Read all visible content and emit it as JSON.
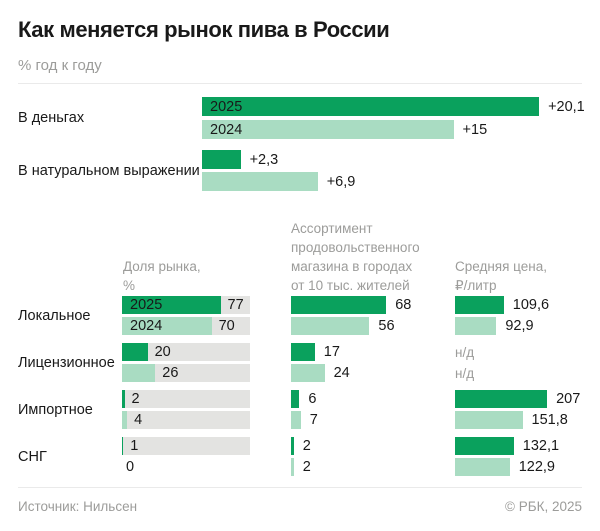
{
  "title": "Как меняется рынок пива в России",
  "subtitle": "% год к году",
  "colors": {
    "dark_green": "#0aa15d",
    "light_green": "#a9dcc2",
    "track_gray": "#e3e3e1",
    "muted_text": "#9c9c9a",
    "ink": "#191919"
  },
  "top_chart": {
    "rows": [
      {
        "label": "В деньгах",
        "bars": [
          {
            "year": "2025",
            "value": 20.1,
            "display": "+20,1"
          },
          {
            "year": "2024",
            "value": 15,
            "display": "+15"
          }
        ]
      },
      {
        "label": "В натуральном выражении",
        "bars": [
          {
            "value": 2.3,
            "display": "+2,3"
          },
          {
            "value": 6.9,
            "display": "+6,9"
          }
        ]
      }
    ]
  },
  "bottom_chart": {
    "col_headers": {
      "share": "Доля рынка,\n%",
      "assortment": "Ассортимент\nпродовольственного\nмагазина в городах\nот 10 тыс. жителей",
      "price": "Средняя цена,\n₽/литр"
    },
    "rows": [
      {
        "label": "Локальное",
        "share": [
          {
            "year": "2025",
            "value": 77,
            "display": "77"
          },
          {
            "year": "2024",
            "value": 70,
            "display": "70"
          }
        ],
        "assortment": [
          {
            "value": 68,
            "display": "68"
          },
          {
            "value": 56,
            "display": "56"
          }
        ],
        "price": [
          {
            "value": 109.6,
            "display": "109,6"
          },
          {
            "value": 92.9,
            "display": "92,9"
          }
        ]
      },
      {
        "label": "Лицензионное",
        "share": [
          {
            "value": 20,
            "display": "20"
          },
          {
            "value": 26,
            "display": "26"
          }
        ],
        "assortment": [
          {
            "value": 17,
            "display": "17"
          },
          {
            "value": 24,
            "display": "24"
          }
        ],
        "price": [
          {
            "display": "н/д"
          },
          {
            "display": "н/д"
          }
        ]
      },
      {
        "label": "Импортное",
        "share": [
          {
            "value": 2,
            "display": "2"
          },
          {
            "value": 4,
            "display": "4"
          }
        ],
        "assortment": [
          {
            "value": 6,
            "display": "6"
          },
          {
            "value": 7,
            "display": "7"
          }
        ],
        "price": [
          {
            "value": 207,
            "display": "207"
          },
          {
            "value": 151.8,
            "display": "151,8"
          }
        ]
      },
      {
        "label": "СНГ",
        "share": [
          {
            "value": 1,
            "display": "1"
          },
          {
            "value": 0,
            "display": "0"
          }
        ],
        "assortment": [
          {
            "value": 2,
            "display": "2"
          },
          {
            "value": 2,
            "display": "2"
          }
        ],
        "price": [
          {
            "value": 132.1,
            "display": "132,1"
          },
          {
            "value": 122.9,
            "display": "122,9"
          }
        ]
      }
    ]
  },
  "footer": {
    "source": "Источник: Нильсен",
    "copyright": "© РБК, 2025"
  },
  "chart_data": [
    {
      "type": "bar",
      "orientation": "horizontal",
      "title": "Как меняется рынок пива в России",
      "unit": "% год к году",
      "categories": [
        "В деньгах",
        "В натуральном выражении"
      ],
      "series": [
        {
          "name": "2025",
          "values": [
            20.1,
            2.3
          ]
        },
        {
          "name": "2024",
          "values": [
            15,
            6.9
          ]
        }
      ],
      "value_labels": [
        [
          "+20,1",
          "+2,3"
        ],
        [
          "+15",
          "+6,9"
        ]
      ],
      "xlim": [
        0,
        21
      ],
      "grid": false,
      "legend_position": "inside-bars"
    },
    {
      "type": "bar",
      "orientation": "horizontal",
      "categories": [
        "Локальное",
        "Лицензионное",
        "Импортное",
        "СНГ"
      ],
      "metrics": [
        {
          "name": "Доля рынка, %",
          "xlim": [
            0,
            100
          ],
          "track_background": true,
          "series": [
            {
              "name": "2025",
              "values": [
                77,
                20,
                2,
                1
              ]
            },
            {
              "name": "2024",
              "values": [
                70,
                26,
                4,
                0
              ]
            }
          ]
        },
        {
          "name": "Ассортимент продовольственного магазина в городах от 10 тыс. жителей",
          "series": [
            {
              "name": "2025",
              "values": [
                68,
                17,
                6,
                2
              ]
            },
            {
              "name": "2024",
              "values": [
                56,
                24,
                7,
                2
              ]
            }
          ]
        },
        {
          "name": "Средняя цена, ₽/литр",
          "no_data_label": "н/д",
          "series": [
            {
              "name": "2025",
              "values": [
                109.6,
                null,
                207,
                132.1
              ]
            },
            {
              "name": "2024",
              "values": [
                92.9,
                null,
                151.8,
                122.9
              ]
            }
          ]
        }
      ],
      "source": "Источник: Нильсен"
    }
  ]
}
